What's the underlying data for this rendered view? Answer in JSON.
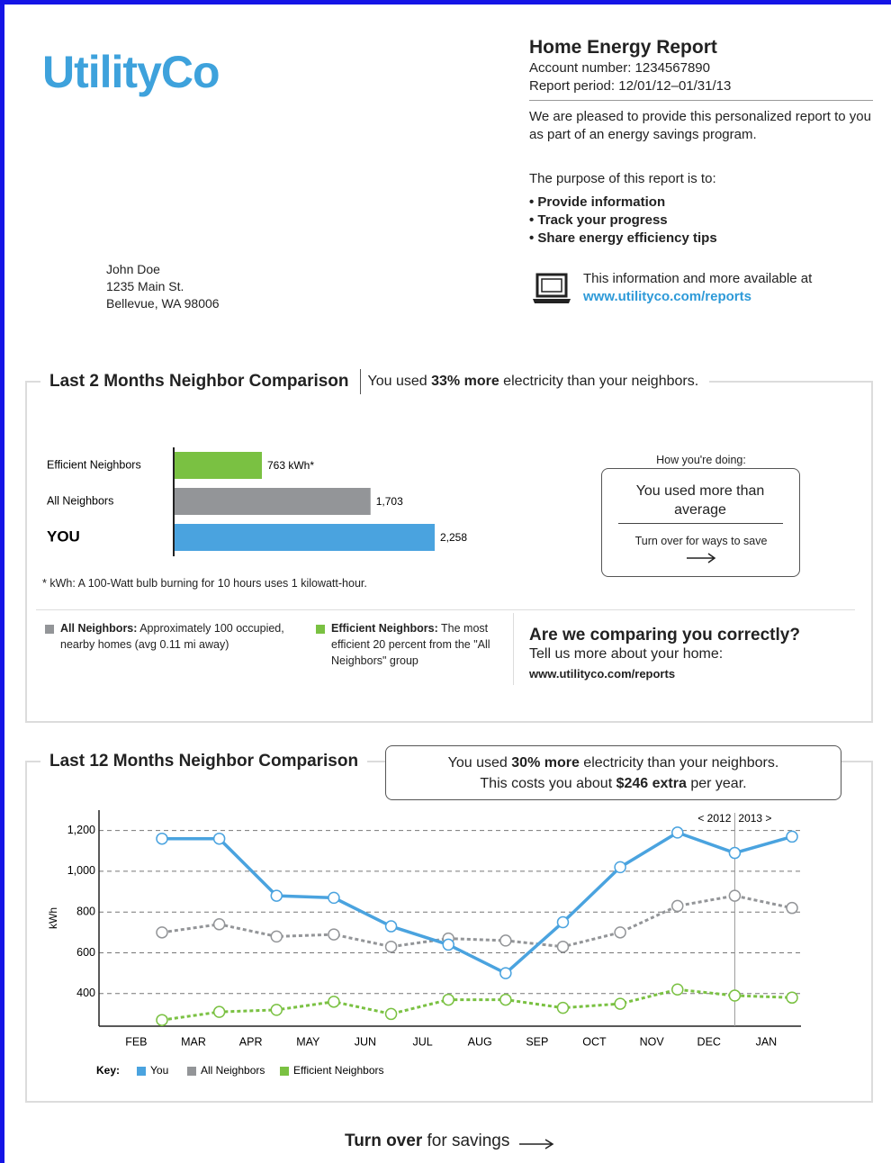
{
  "header": {
    "logo": "UtilityCo",
    "title": "Home Energy Report",
    "account": "Account number: 1234567890",
    "period": "Report period: 12/01/12–01/31/13",
    "intro": "We are pleased to provide this personalized report to you as part of an energy savings program.",
    "purpose": "The purpose of this report is to:",
    "bullets": [
      "Provide information",
      "Track your progress",
      "Share energy efficiency tips"
    ],
    "more_info": "This information and more available at",
    "link": "www.utilityco.com/reports"
  },
  "address": [
    "John Doe",
    "1235 Main St.",
    "Bellevue, WA 98006"
  ],
  "section1": {
    "title": "Last 2 Months Neighbor Comparison",
    "summary": [
      "You used ",
      "33% more",
      " electricity than your neighbors."
    ],
    "footnote": "* kWh: A 100-Watt bulb burning for 10 hours uses 1 kilowatt-hour.",
    "doing_label": "How you're doing:",
    "doing_result": "You used more than average",
    "doing_hint": "Turn over for ways to save",
    "notes": [
      {
        "term": "All Neighbors:",
        "text": "Approximately 100 occupied, nearby homes (avg 0.11 mi away)"
      },
      {
        "term": "Efficient Neighbors:",
        "text": "The most efficient 20 percent from the \"All Neighbors\" group"
      }
    ],
    "question": "Are we comparing you correctly?",
    "question_text": "Tell us more about your home:",
    "question_link": "www.utilityco.com/reports"
  },
  "section2": {
    "title": "Last 12 Months Neighbor Comparison",
    "callout": [
      [
        "You used ",
        "30% more",
        " electricity than your neighbors."
      ],
      [
        "This costs you about ",
        "$246 extra",
        " per year."
      ]
    ]
  },
  "footer": [
    "Turn over",
    " for savings"
  ],
  "chart_data": [
    {
      "type": "bar",
      "orientation": "horizontal",
      "categories": [
        "Efficient Neighbors",
        "All Neighbors",
        "YOU"
      ],
      "values": [
        763,
        1703,
        2258
      ],
      "value_labels": [
        "763 kWh*",
        "1,703",
        "2,258"
      ],
      "colors": [
        "#7ac142",
        "#939598",
        "#4aa3df"
      ]
    },
    {
      "type": "line",
      "categories": [
        "FEB",
        "MAR",
        "APR",
        "MAY",
        "JUN",
        "JUL",
        "AUG",
        "SEP",
        "OCT",
        "NOV",
        "DEC",
        "JAN"
      ],
      "y_label": "kWh",
      "ylim": [
        240,
        1300
      ],
      "yticks": [
        400,
        600,
        800,
        {
          "value": 1000,
          "label": "1,000"
        },
        {
          "value": 1200,
          "label": "1,200"
        }
      ],
      "grid": true,
      "annotations": [
        "< 2012",
        "2013 >"
      ],
      "legend_title": "Key:",
      "series": [
        {
          "name": "You",
          "color": "#4aa3df",
          "dashed": false,
          "values": [
            1160,
            1160,
            880,
            870,
            730,
            640,
            500,
            750,
            1020,
            1190,
            1090,
            1170
          ]
        },
        {
          "name": "All Neighbors",
          "color": "#939598",
          "dashed": true,
          "values": [
            700,
            740,
            680,
            690,
            630,
            670,
            660,
            630,
            700,
            830,
            880,
            820
          ]
        },
        {
          "name": "Efficient Neighbors",
          "color": "#7ac142",
          "dashed": true,
          "values": [
            270,
            310,
            320,
            360,
            300,
            370,
            370,
            330,
            350,
            420,
            390,
            380
          ]
        }
      ]
    }
  ]
}
